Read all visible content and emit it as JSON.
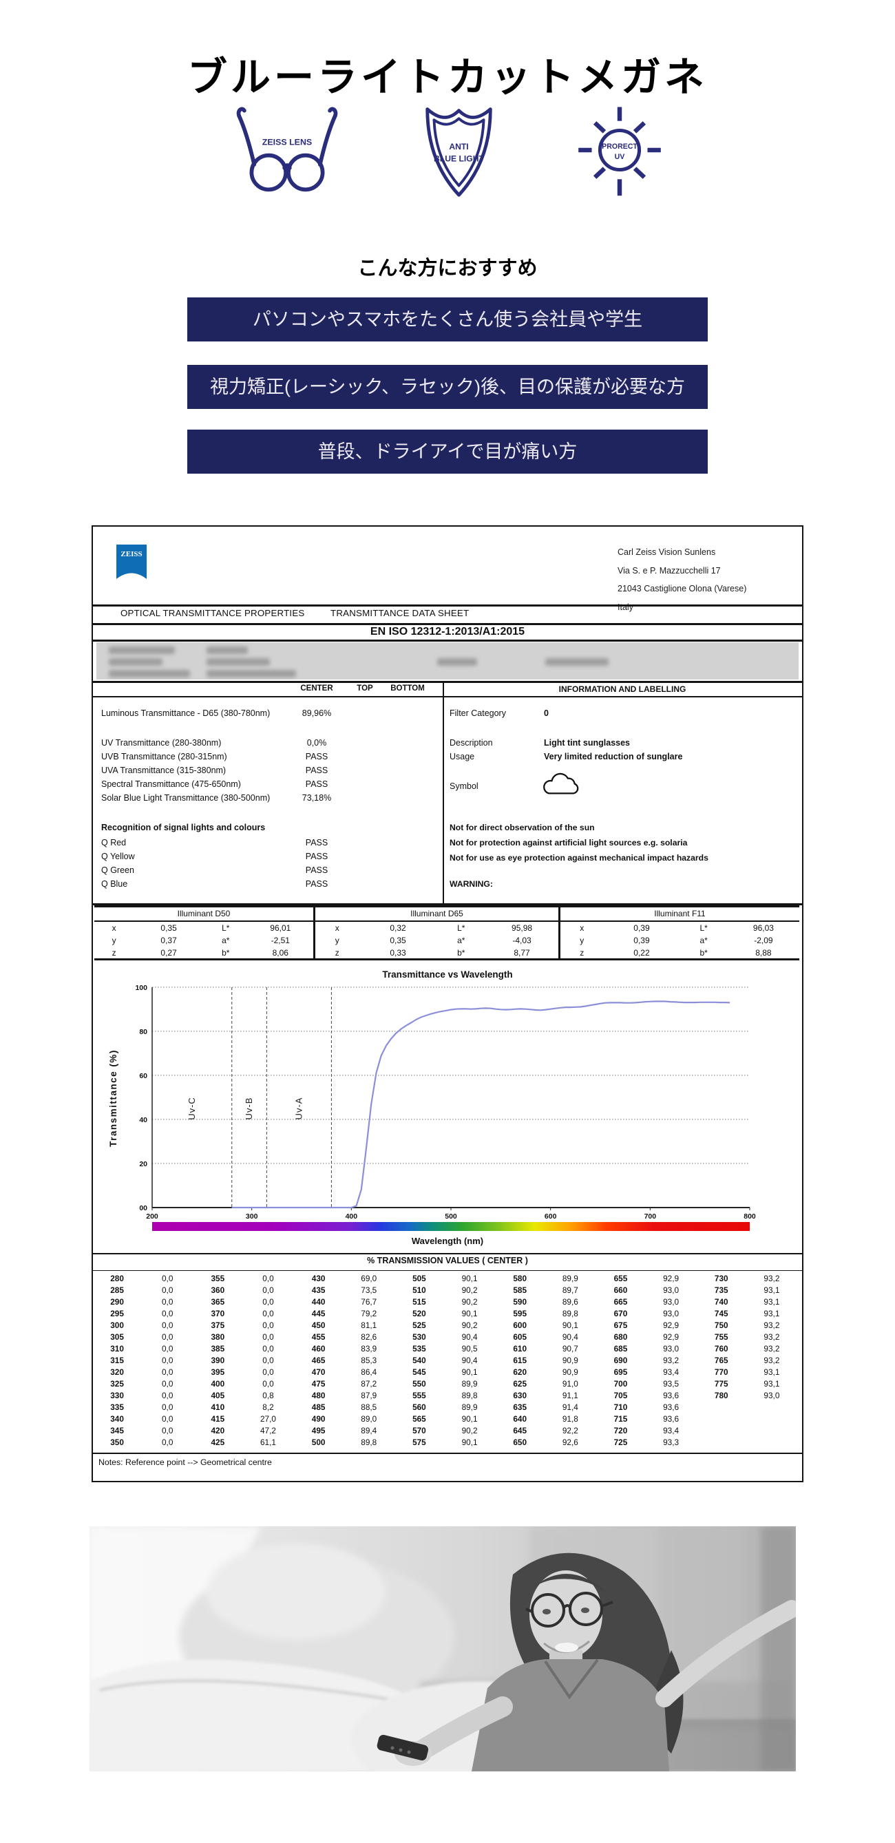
{
  "page": {
    "title": "ブルーライトカットメガネ",
    "subtitle": "こんな方におすすめ"
  },
  "badges": {
    "glasses_label": "ZEISS LENS",
    "shield_line1": "ANTI",
    "shield_line2": "BLUE LIGHT",
    "sun_line1": "PRORECT",
    "sun_line2": "UV",
    "accent_color": "#2a2d7b"
  },
  "banners": [
    "パソコンやスマホをたくさん使う会社員や学生",
    "視力矯正(レーシック、ラセック)後、目の保護が必要な方",
    "普段、ドライアイで目が痛い方"
  ],
  "banner_color": "#20245e",
  "datasheet": {
    "logo_text": "ZEISS",
    "logo_color": "#0e6db5",
    "company": {
      "name": "Carl Zeiss Vision Sunlens",
      "address1": "Via S. e P. Mazzucchelli 17",
      "address2": "21043 Castiglione Olona (Varese)",
      "address3": "Italy"
    },
    "section_left_title": "OPTICAL TRANSMITTANCE PROPERTIES",
    "section_right_title": "TRANSMITTANCE DATA SHEET",
    "standard": "EN ISO 12312-1:2013/A1:2015",
    "columns": {
      "center": "CENTER",
      "top": "TOP",
      "bottom": "BOTTOM"
    },
    "measurements": [
      {
        "label": "Luminous Transmittance - D65 (380-780nm)",
        "value": "89,96%"
      },
      {
        "label": "UV Transmittance (280-380nm)",
        "value": "0,0%"
      },
      {
        "label": "UVB Transmittance (280-315nm)",
        "value": "PASS"
      },
      {
        "label": "UVA Transmittance (315-380nm)",
        "value": "PASS"
      },
      {
        "label": "Spectral Transmittance (475-650nm)",
        "value": "PASS"
      },
      {
        "label": "Solar Blue Light Transmittance (380-500nm)",
        "value": "73,18%"
      }
    ],
    "recognition_title": "Recognition of signal lights and colours",
    "recognition": [
      {
        "label": "Q Red",
        "value": "PASS"
      },
      {
        "label": "Q Yellow",
        "value": "PASS"
      },
      {
        "label": "Q Green",
        "value": "PASS"
      },
      {
        "label": "Q Blue",
        "value": "PASS"
      }
    ],
    "info": {
      "title": "INFORMATION AND LABELLING",
      "filter_category_label": "Filter Category",
      "filter_category_value": "0",
      "description_label": "Description",
      "description_value": "Light tint sunglasses",
      "usage_label": "Usage",
      "usage_value": "Very limited reduction of sunglare",
      "symbol_label": "Symbol",
      "symbol_icon": "cloud-icon",
      "notes": [
        "Not for direct observation of the sun",
        "Not for protection against artificial light sources e.g. solaria",
        "Not for use as eye protection against mechanical impact hazards"
      ],
      "warning": "WARNING:"
    },
    "illuminants": [
      {
        "title": "Illuminant D50",
        "rows": [
          [
            "x",
            "0,35",
            "L*",
            "96,01"
          ],
          [
            "y",
            "0,37",
            "a*",
            "-2,51"
          ],
          [
            "z",
            "0,27",
            "b*",
            "8,06"
          ]
        ]
      },
      {
        "title": "Illuminant D65",
        "rows": [
          [
            "x",
            "0,32",
            "L*",
            "95,98"
          ],
          [
            "y",
            "0,35",
            "a*",
            "-4,03"
          ],
          [
            "z",
            "0,33",
            "b*",
            "8,77"
          ]
        ]
      },
      {
        "title": "Illuminant F11",
        "rows": [
          [
            "x",
            "0,39",
            "L*",
            "96,03"
          ],
          [
            "y",
            "0,39",
            "a*",
            "-2,09"
          ],
          [
            "z",
            "0,22",
            "b*",
            "8,88"
          ]
        ]
      }
    ],
    "transmission_title": "% TRANSMISSION VALUES ( CENTER )",
    "transmission_rows": [
      [
        "280",
        "0,0",
        "355",
        "0,0",
        "430",
        "69,0",
        "505",
        "90,1",
        "580",
        "89,9",
        "655",
        "92,9",
        "730",
        "93,2"
      ],
      [
        "285",
        "0,0",
        "360",
        "0,0",
        "435",
        "73,5",
        "510",
        "90,2",
        "585",
        "89,7",
        "660",
        "93,0",
        "735",
        "93,1"
      ],
      [
        "290",
        "0,0",
        "365",
        "0,0",
        "440",
        "76,7",
        "515",
        "90,2",
        "590",
        "89,6",
        "665",
        "93,0",
        "740",
        "93,1"
      ],
      [
        "295",
        "0,0",
        "370",
        "0,0",
        "445",
        "79,2",
        "520",
        "90,1",
        "595",
        "89,8",
        "670",
        "93,0",
        "745",
        "93,1"
      ],
      [
        "300",
        "0,0",
        "375",
        "0,0",
        "450",
        "81,1",
        "525",
        "90,2",
        "600",
        "90,1",
        "675",
        "92,9",
        "750",
        "93,2"
      ],
      [
        "305",
        "0,0",
        "380",
        "0,0",
        "455",
        "82,6",
        "530",
        "90,4",
        "605",
        "90,4",
        "680",
        "92,9",
        "755",
        "93,2"
      ],
      [
        "310",
        "0,0",
        "385",
        "0,0",
        "460",
        "83,9",
        "535",
        "90,5",
        "610",
        "90,7",
        "685",
        "93,0",
        "760",
        "93,2"
      ],
      [
        "315",
        "0,0",
        "390",
        "0,0",
        "465",
        "85,3",
        "540",
        "90,4",
        "615",
        "90,9",
        "690",
        "93,2",
        "765",
        "93,2"
      ],
      [
        "320",
        "0,0",
        "395",
        "0,0",
        "470",
        "86,4",
        "545",
        "90,1",
        "620",
        "90,9",
        "695",
        "93,4",
        "770",
        "93,1"
      ],
      [
        "325",
        "0,0",
        "400",
        "0,0",
        "475",
        "87,2",
        "550",
        "89,9",
        "625",
        "91,0",
        "700",
        "93,5",
        "775",
        "93,1"
      ],
      [
        "330",
        "0,0",
        "405",
        "0,8",
        "480",
        "87,9",
        "555",
        "89,8",
        "630",
        "91,1",
        "705",
        "93,6",
        "780",
        "93,0"
      ],
      [
        "335",
        "0,0",
        "410",
        "8,2",
        "485",
        "88,5",
        "560",
        "89,9",
        "635",
        "91,4",
        "710",
        "93,6",
        "",
        ""
      ],
      [
        "340",
        "0,0",
        "415",
        "27,0",
        "490",
        "89,0",
        "565",
        "90,1",
        "640",
        "91,8",
        "715",
        "93,6",
        "",
        ""
      ],
      [
        "345",
        "0,0",
        "420",
        "47,2",
        "495",
        "89,4",
        "570",
        "90,2",
        "645",
        "92,2",
        "720",
        "93,4",
        "",
        ""
      ],
      [
        "350",
        "0,0",
        "425",
        "61,1",
        "500",
        "89,8",
        "575",
        "90,1",
        "650",
        "92,6",
        "725",
        "93,3",
        "",
        ""
      ]
    ],
    "notes": "Notes: Reference point --> Geometrical centre"
  },
  "chart_data": {
    "type": "line",
    "title": "Transmittance vs Wavelength",
    "xlabel": "Wavelength (nm)",
    "ylabel": "Transmittance (%)",
    "xlim": [
      200,
      800
    ],
    "ylim": [
      0,
      100
    ],
    "x_ticks": [
      200,
      300,
      400,
      500,
      600,
      700,
      800
    ],
    "y_ticks": [
      0,
      20,
      40,
      60,
      80,
      100
    ],
    "y_tick_labels": [
      "00",
      "20",
      "40",
      "60",
      "80",
      "100"
    ],
    "grid": "horizontal-dotted",
    "legend_position": "none",
    "uv_regions": [
      {
        "label": "Uv-C",
        "boundary_nm": 280
      },
      {
        "label": "Uv-B",
        "boundary_nm": 315
      },
      {
        "label": "Uv-A",
        "boundary_nm": 380
      }
    ],
    "series": [
      {
        "name": "transmittance_center",
        "color": "#8b8fd9",
        "x_start": 280,
        "x_step": 5,
        "values": [
          0,
          0,
          0,
          0,
          0,
          0,
          0,
          0,
          0,
          0,
          0,
          0,
          0,
          0,
          0,
          0,
          0,
          0,
          0,
          0,
          0,
          0,
          0,
          0,
          0,
          0.8,
          8.2,
          27.0,
          47.2,
          61.1,
          69.0,
          73.5,
          76.7,
          79.2,
          81.1,
          82.6,
          83.9,
          85.3,
          86.4,
          87.2,
          87.9,
          88.5,
          89.0,
          89.4,
          89.8,
          90.1,
          90.2,
          90.2,
          90.1,
          90.2,
          90.4,
          90.5,
          90.4,
          90.1,
          89.9,
          89.8,
          89.9,
          90.1,
          90.2,
          90.1,
          89.9,
          89.7,
          89.6,
          89.8,
          90.1,
          90.4,
          90.7,
          90.9,
          90.9,
          91.0,
          91.1,
          91.4,
          91.8,
          92.2,
          92.6,
          92.9,
          93.0,
          93.0,
          93.0,
          92.9,
          92.9,
          93.0,
          93.2,
          93.4,
          93.5,
          93.6,
          93.6,
          93.6,
          93.4,
          93.3,
          93.2,
          93.1,
          93.1,
          93.1,
          93.2,
          93.2,
          93.2,
          93.2,
          93.1,
          93.1,
          93.0
        ]
      }
    ]
  },
  "photo": {
    "description": "Grayscale photo: smiling woman wearing eyeglasses sitting on a white couch holding a TV remote"
  }
}
